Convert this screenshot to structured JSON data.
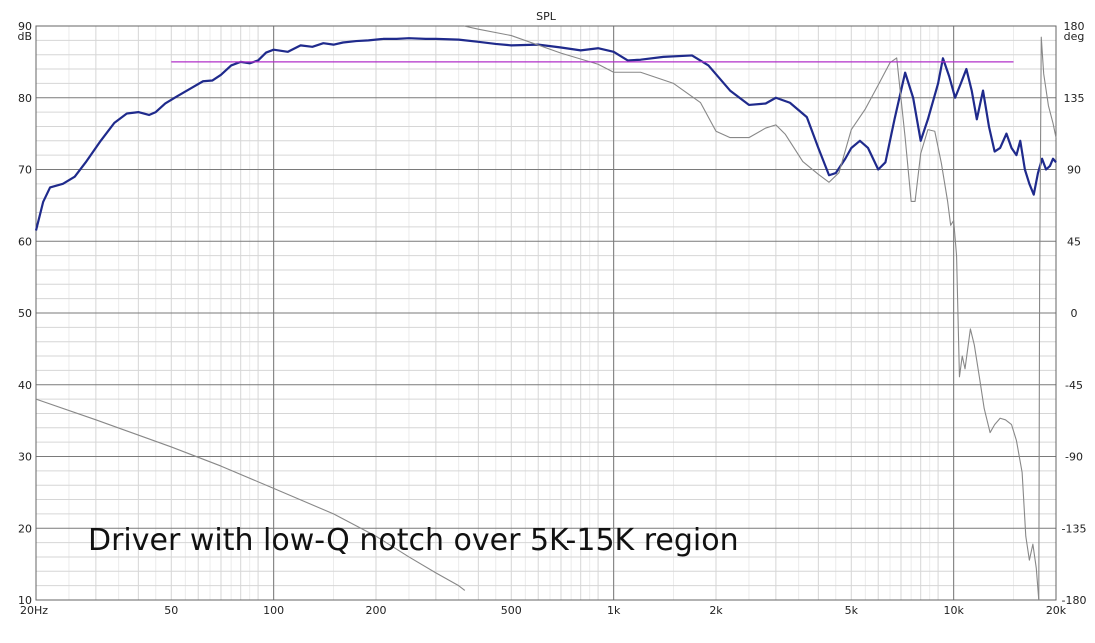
{
  "chart_data": {
    "type": "line",
    "title": "SPL",
    "caption": "Driver with low-Q notch over 5K-15K region",
    "xscale": "log",
    "xlim": [
      20,
      20000
    ],
    "ylim": [
      10,
      90
    ],
    "y2lim": [
      -180,
      180
    ],
    "ylabel": "dB",
    "y2label": "deg",
    "grid": true,
    "x_tick_labels": [
      {
        "v": 20,
        "label": "20Hz"
      },
      {
        "v": 50,
        "label": "50"
      },
      {
        "v": 100,
        "label": "100"
      },
      {
        "v": 200,
        "label": "200"
      },
      {
        "v": 500,
        "label": "500"
      },
      {
        "v": 1000,
        "label": "1k"
      },
      {
        "v": 2000,
        "label": "2k"
      },
      {
        "v": 5000,
        "label": "5k"
      },
      {
        "v": 10000,
        "label": "10k"
      },
      {
        "v": 20000,
        "label": "20k"
      }
    ],
    "y_tick_labels": [
      "90",
      "80",
      "70",
      "60",
      "50",
      "40",
      "30",
      "20",
      "10"
    ],
    "y_ticks": [
      90,
      80,
      70,
      60,
      50,
      40,
      30,
      20,
      10
    ],
    "y2_tick_labels": [
      "180",
      "135",
      "90",
      "45",
      "0",
      "-45",
      "-90",
      "-135",
      "-180"
    ],
    "y2_ticks": [
      180,
      135,
      90,
      45,
      0,
      -45,
      -90,
      -135,
      -180
    ],
    "colors": {
      "spl": "#1f2a8c",
      "phase": "#888888",
      "reference": "#b030c8",
      "grid_major": "#7a7a7a",
      "grid_minor": "#d6d6d6",
      "background": "#ffffff"
    },
    "series": [
      {
        "key": "spl",
        "axis": "left",
        "points": [
          [
            20,
            61.5
          ],
          [
            21,
            65.5
          ],
          [
            22,
            67.5
          ],
          [
            24,
            68
          ],
          [
            26,
            69
          ],
          [
            28,
            71
          ],
          [
            31,
            74
          ],
          [
            34,
            76.5
          ],
          [
            37,
            77.8
          ],
          [
            40,
            78
          ],
          [
            43,
            77.6
          ],
          [
            45,
            78
          ],
          [
            48,
            79.2
          ],
          [
            52,
            80.2
          ],
          [
            57,
            81.3
          ],
          [
            62,
            82.3
          ],
          [
            66,
            82.4
          ],
          [
            70,
            83.2
          ],
          [
            75,
            84.5
          ],
          [
            80,
            85
          ],
          [
            85,
            84.8
          ],
          [
            90,
            85.2
          ],
          [
            95,
            86.3
          ],
          [
            100,
            86.7
          ],
          [
            110,
            86.4
          ],
          [
            120,
            87.3
          ],
          [
            130,
            87.1
          ],
          [
            140,
            87.6
          ],
          [
            150,
            87.4
          ],
          [
            160,
            87.7
          ],
          [
            175,
            87.9
          ],
          [
            190,
            88
          ],
          [
            210,
            88.2
          ],
          [
            230,
            88.2
          ],
          [
            250,
            88.3
          ],
          [
            280,
            88.2
          ],
          [
            300,
            88.2
          ],
          [
            350,
            88.1
          ],
          [
            400,
            87.8
          ],
          [
            450,
            87.5
          ],
          [
            500,
            87.3
          ],
          [
            600,
            87.4
          ],
          [
            700,
            87
          ],
          [
            800,
            86.6
          ],
          [
            900,
            86.9
          ],
          [
            1000,
            86.4
          ],
          [
            1100,
            85.2
          ],
          [
            1200,
            85.3
          ],
          [
            1400,
            85.7
          ],
          [
            1700,
            85.9
          ],
          [
            1900,
            84.5
          ],
          [
            2200,
            81
          ],
          [
            2500,
            79
          ],
          [
            2800,
            79.2
          ],
          [
            3000,
            80
          ],
          [
            3300,
            79.3
          ],
          [
            3700,
            77.3
          ],
          [
            4000,
            73
          ],
          [
            4300,
            69.2
          ],
          [
            4500,
            69.5
          ],
          [
            4800,
            71.5
          ],
          [
            5000,
            73
          ],
          [
            5300,
            74
          ],
          [
            5600,
            73
          ],
          [
            6000,
            70
          ],
          [
            6300,
            71
          ],
          [
            6700,
            77
          ],
          [
            7200,
            83.5
          ],
          [
            7600,
            80
          ],
          [
            8000,
            74
          ],
          [
            8400,
            77
          ],
          [
            9000,
            82
          ],
          [
            9300,
            85.5
          ],
          [
            9700,
            83
          ],
          [
            10100,
            80
          ],
          [
            10500,
            82
          ],
          [
            10900,
            84
          ],
          [
            11300,
            81
          ],
          [
            11700,
            77
          ],
          [
            12200,
            81
          ],
          [
            12700,
            76
          ],
          [
            13200,
            72.5
          ],
          [
            13700,
            73
          ],
          [
            14300,
            75
          ],
          [
            14800,
            73
          ],
          [
            15300,
            72
          ],
          [
            15700,
            74
          ],
          [
            16200,
            70
          ],
          [
            16700,
            68
          ],
          [
            17200,
            66.5
          ],
          [
            17700,
            69.5
          ],
          [
            18200,
            71.5
          ],
          [
            18700,
            70
          ],
          [
            19200,
            70.5
          ],
          [
            19600,
            71.5
          ],
          [
            20000,
            71
          ]
        ]
      },
      {
        "key": "phase",
        "axis": "right",
        "segments": [
          [
            [
              20,
              -54
            ],
            [
              30,
              -67
            ],
            [
              50,
              -84
            ],
            [
              70,
              -96
            ],
            [
              100,
              -110
            ],
            [
              150,
              -126
            ],
            [
              200,
              -140
            ],
            [
              250,
              -153
            ],
            [
              300,
              -163
            ],
            [
              350,
              -171
            ],
            [
              365,
              -174
            ]
          ],
          [
            [
              363,
              180
            ],
            [
              400,
              178
            ],
            [
              500,
              174
            ],
            [
              700,
              163
            ],
            [
              900,
              156
            ],
            [
              1000,
              151
            ],
            [
              1200,
              151
            ],
            [
              1500,
              144
            ],
            [
              1800,
              132
            ],
            [
              2000,
              114
            ],
            [
              2200,
              110
            ],
            [
              2500,
              110
            ],
            [
              2800,
              116
            ],
            [
              3000,
              118
            ],
            [
              3200,
              112
            ],
            [
              3600,
              95
            ],
            [
              4000,
              87
            ],
            [
              4300,
              82
            ],
            [
              4600,
              88
            ],
            [
              5000,
              115
            ],
            [
              5500,
              128
            ],
            [
              6000,
              143
            ],
            [
              6500,
              157
            ],
            [
              6800,
              160
            ],
            [
              7200,
              110
            ],
            [
              7500,
              70
            ],
            [
              7700,
              70
            ],
            [
              8000,
              100
            ],
            [
              8400,
              115
            ],
            [
              8800,
              114
            ],
            [
              9200,
              94
            ],
            [
              9600,
              70
            ],
            [
              9800,
              55
            ],
            [
              10000,
              58
            ],
            [
              10200,
              36
            ],
            [
              10400,
              -40
            ],
            [
              10600,
              -27
            ],
            [
              10800,
              -35
            ],
            [
              11200,
              -10
            ],
            [
              11500,
              -20
            ],
            [
              11900,
              -40
            ],
            [
              12300,
              -60
            ],
            [
              12800,
              -75
            ],
            [
              13200,
              -70
            ],
            [
              13700,
              -66
            ],
            [
              14200,
              -67
            ],
            [
              14800,
              -70
            ],
            [
              15300,
              -80
            ],
            [
              15900,
              -100
            ],
            [
              16300,
              -140
            ],
            [
              16700,
              -155
            ],
            [
              17100,
              -145
            ],
            [
              17500,
              -160
            ],
            [
              17800,
              -180
            ]
          ],
          [
            [
              17800,
              -180
            ],
            [
              17900,
              20
            ],
            [
              18100,
              173
            ],
            [
              18400,
              150
            ],
            [
              19000,
              130
            ],
            [
              19600,
              119
            ],
            [
              20000,
              110
            ]
          ]
        ]
      },
      {
        "key": "reference",
        "axis": "left",
        "points": [
          [
            50,
            85
          ],
          [
            15000,
            85
          ]
        ]
      }
    ]
  }
}
